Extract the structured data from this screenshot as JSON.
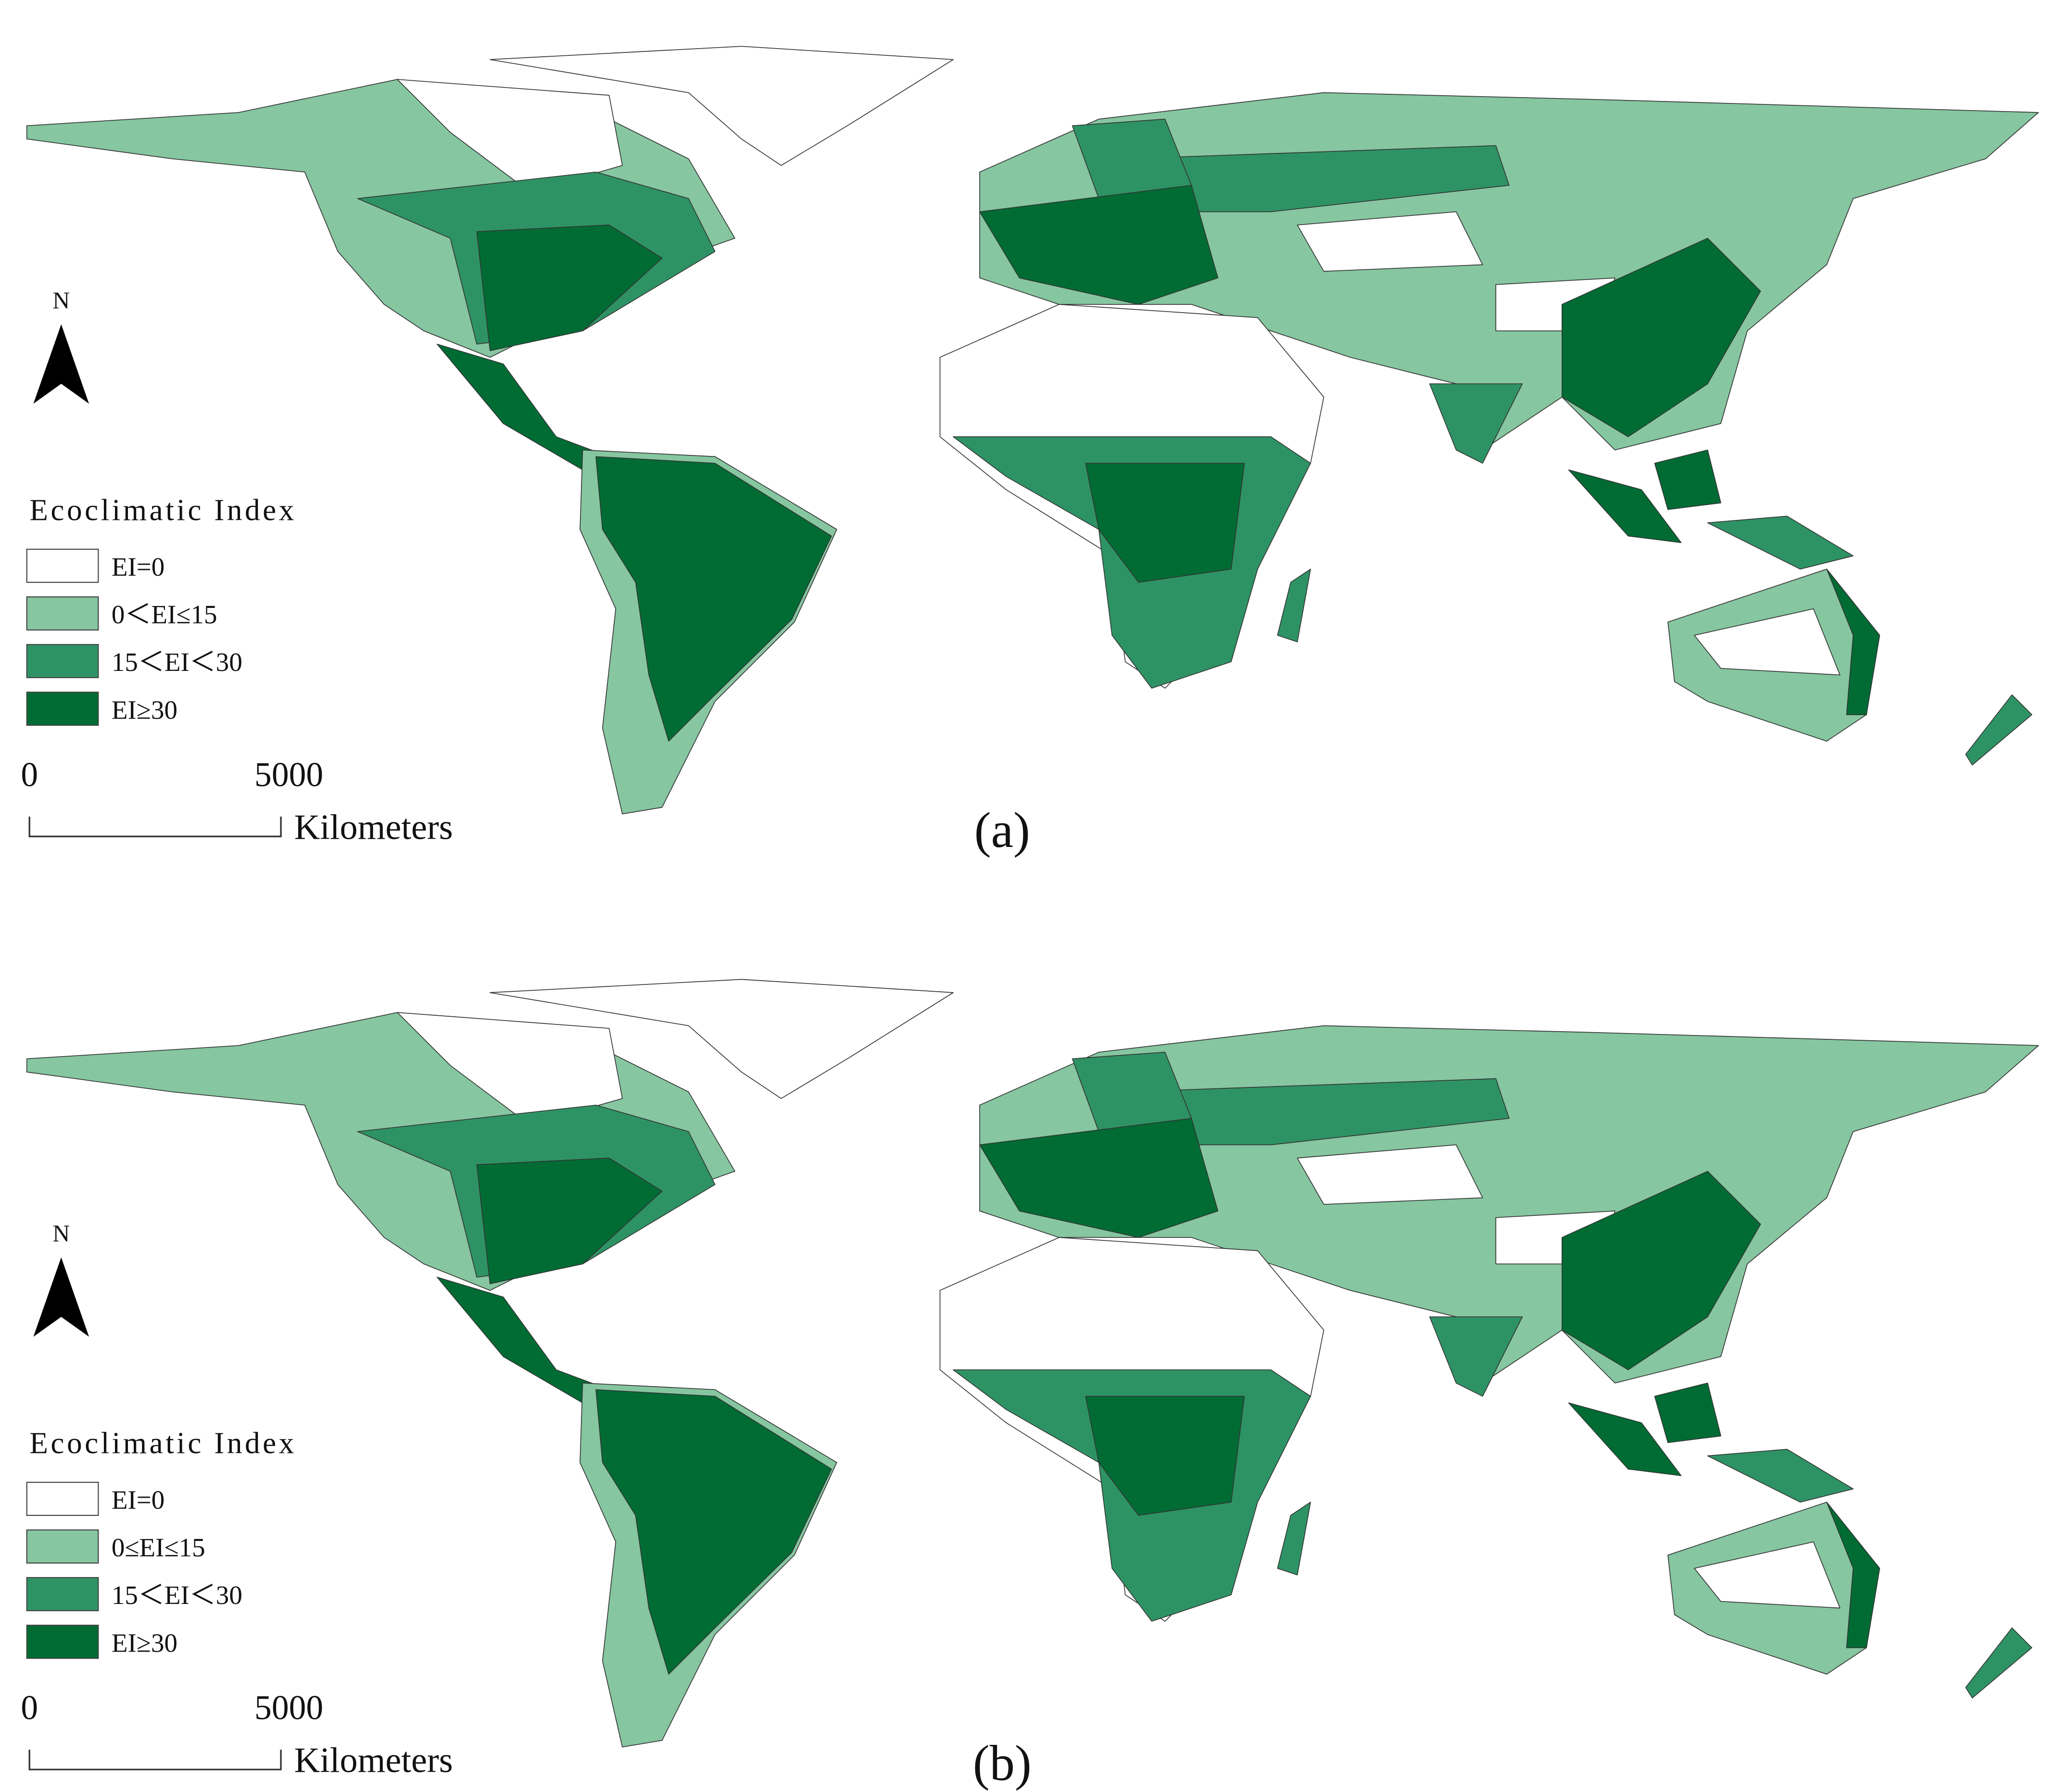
{
  "panels": [
    {
      "label": "(a)",
      "north": "N",
      "legend": {
        "title": "Ecoclimatic Index",
        "items": [
          {
            "label": "EI=0",
            "color": "#ffffff"
          },
          {
            "label": "0＜EI≤15",
            "color": "#86c6a0"
          },
          {
            "label": "15＜EI＜30",
            "color": "#2e9364"
          },
          {
            "label": "EI≥30",
            "color": "#006c34"
          }
        ]
      },
      "scale_bar": {
        "start": "0",
        "end": "5000",
        "unit": "Kilometers"
      }
    },
    {
      "label": "(b)",
      "north": "N",
      "legend": {
        "title": "Ecoclimatic Index",
        "items": [
          {
            "label": "EI=0",
            "color": "#ffffff"
          },
          {
            "label": "0≤EI≤15",
            "color": "#86c6a0"
          },
          {
            "label": "15＜EI＜30",
            "color": "#2e9364"
          },
          {
            "label": "EI≥30",
            "color": "#006c34"
          }
        ]
      },
      "scale_bar": {
        "start": "0",
        "end": "5000",
        "unit": "Kilometers"
      }
    }
  ]
}
